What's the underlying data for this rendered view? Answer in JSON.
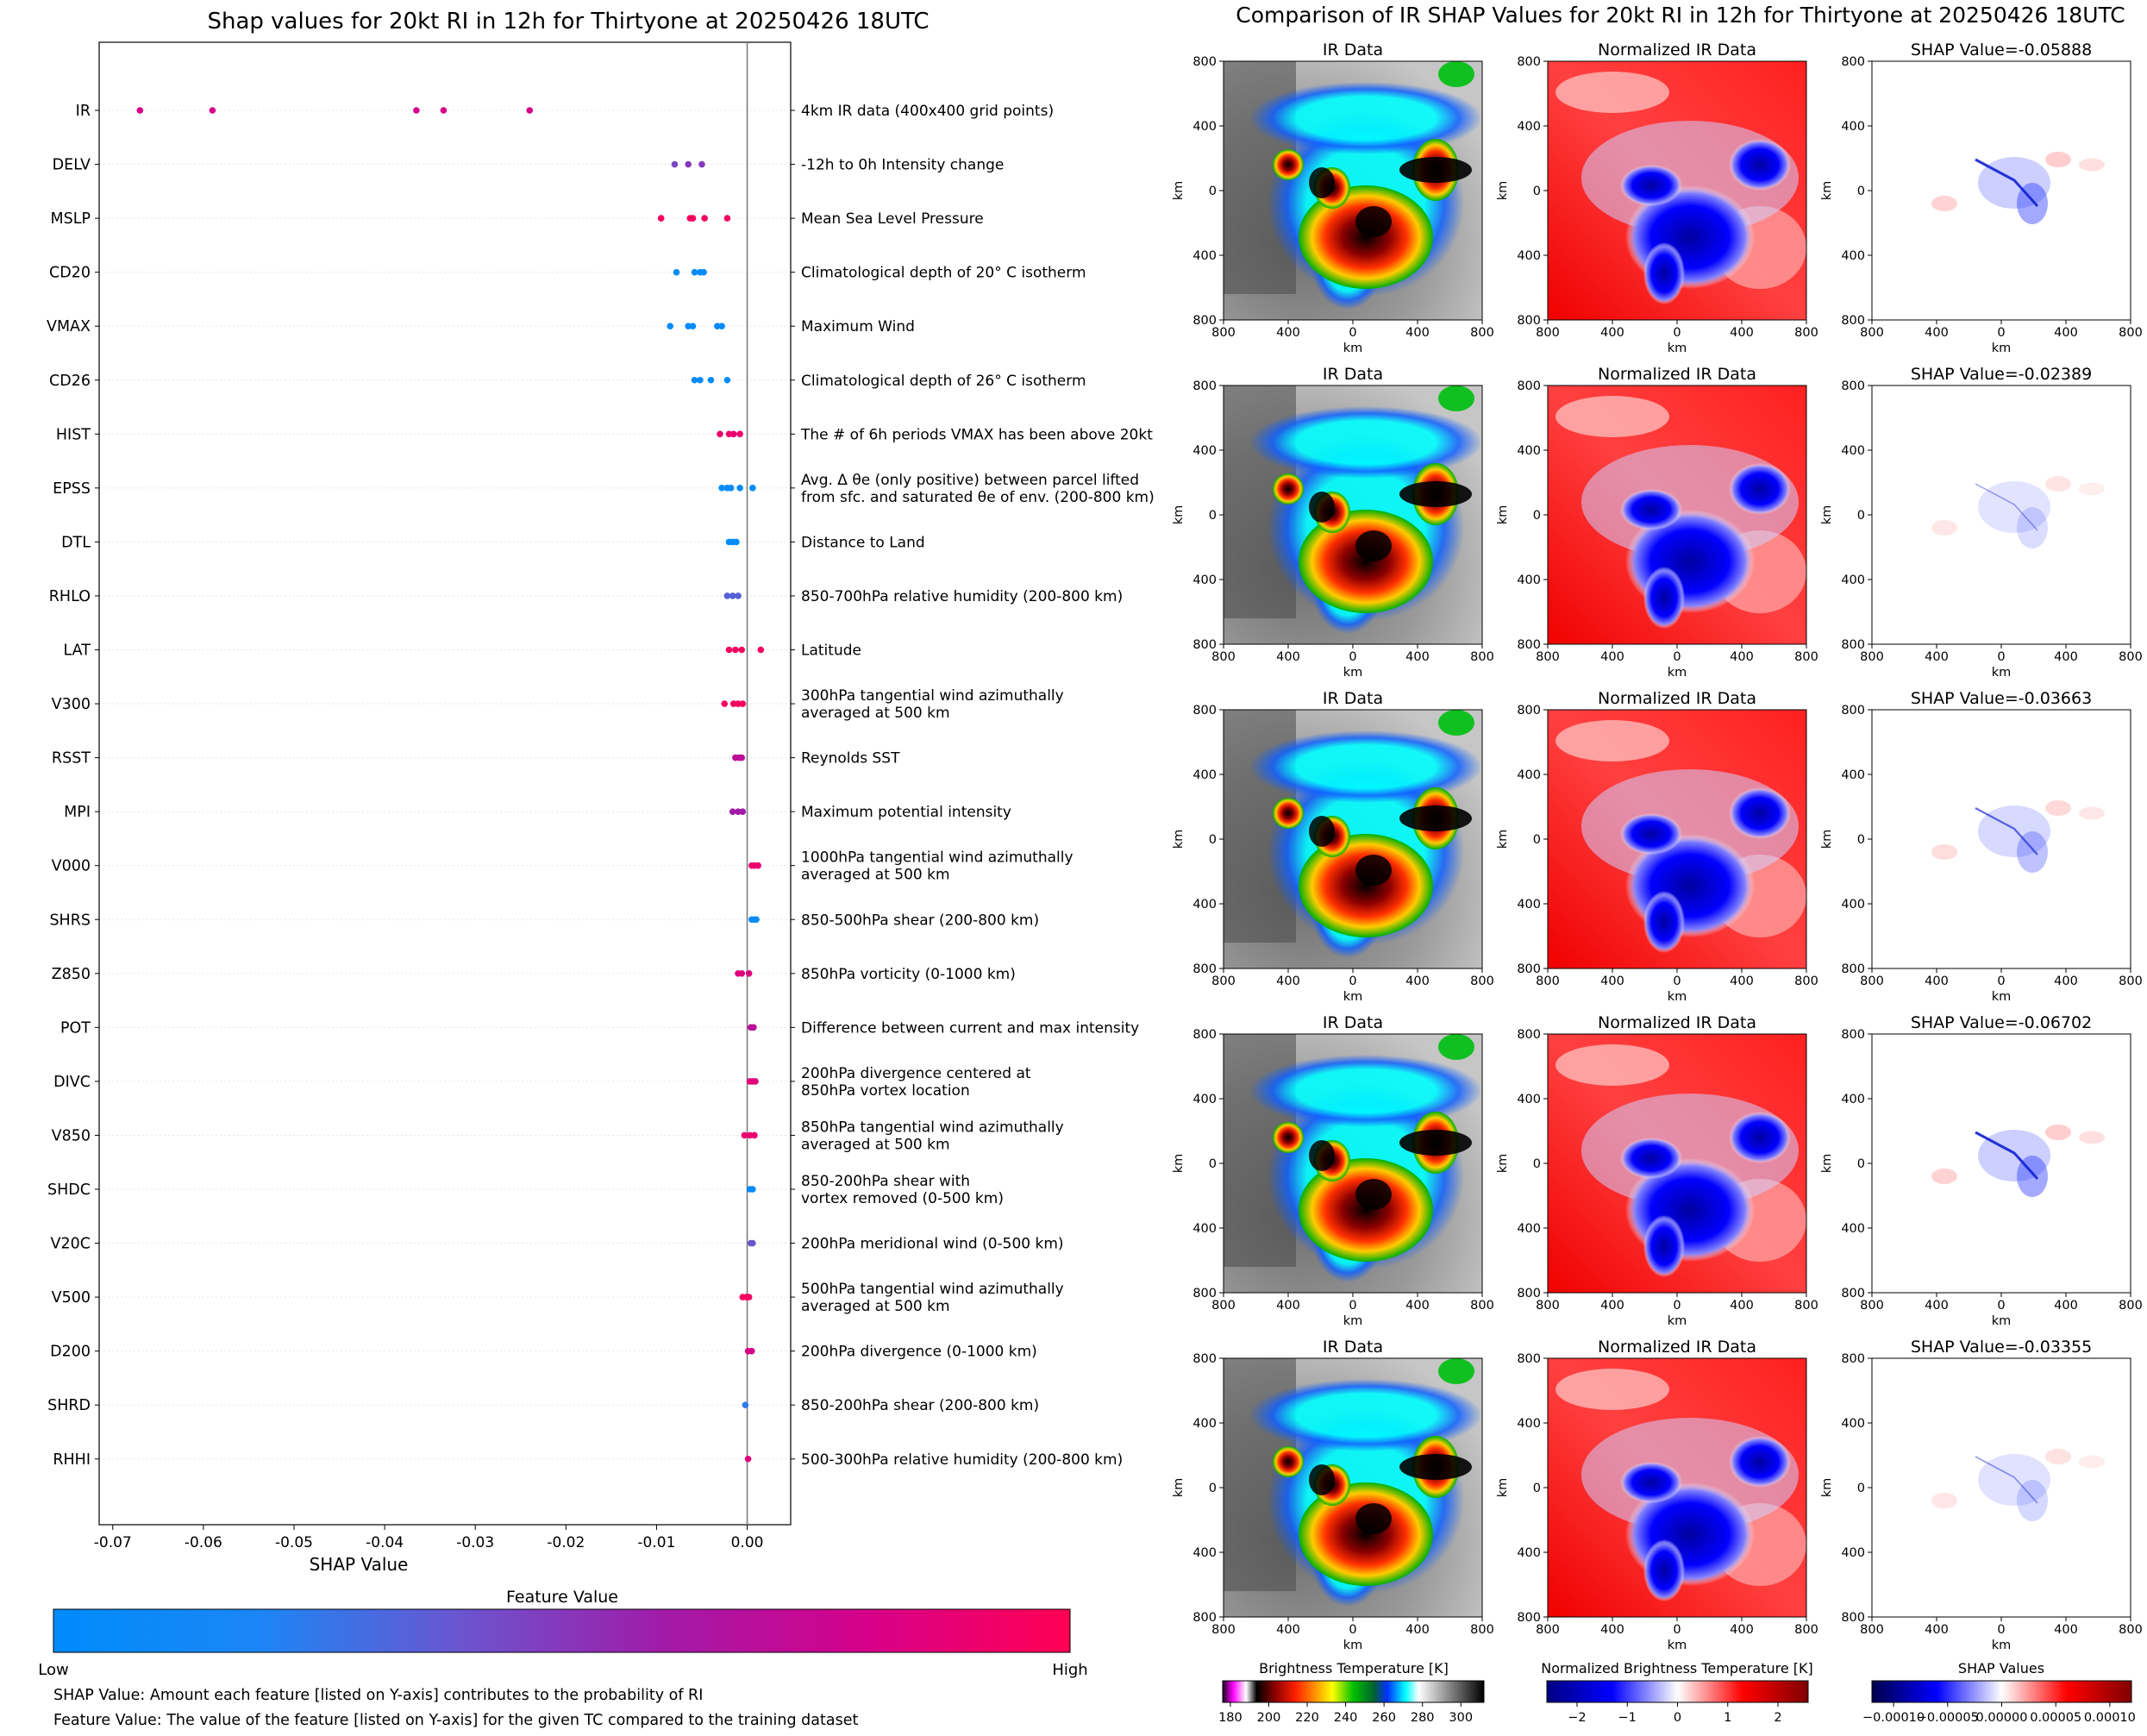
{
  "colors": {
    "low": "#008bfb",
    "mid": "#8a3fbf",
    "high": "#ff0052",
    "axis": "#000000",
    "grid": "#dddddd"
  },
  "chart_data": [
    {
      "type": "scatter",
      "title": "Shap values for 20kt RI in 12h for Thirtyone at 20250426 18UTC",
      "xlabel": "SHAP Value",
      "xlim": [
        -0.0715,
        0.0048
      ],
      "xticks": [
        "-0.07",
        "-0.06",
        "-0.05",
        "-0.04",
        "-0.03",
        "-0.02",
        "-0.01",
        "0.00"
      ],
      "xtick_values": [
        -0.07,
        -0.06,
        -0.05,
        -0.04,
        -0.03,
        -0.02,
        -0.01,
        0.0
      ],
      "features": [
        {
          "name": "IR",
          "desc": [
            "4km IR data (400x400 grid points)"
          ],
          "points": [
            [
              -0.067,
              0.8
            ],
            [
              -0.059,
              0.8
            ],
            [
              -0.0365,
              0.8
            ],
            [
              -0.0335,
              0.8
            ],
            [
              -0.024,
              0.8
            ]
          ]
        },
        {
          "name": "DELV",
          "desc": [
            "-12h to 0h Intensity change"
          ],
          "points": [
            [
              -0.008,
              0.45
            ],
            [
              -0.0065,
              0.5
            ],
            [
              -0.005,
              0.5
            ]
          ]
        },
        {
          "name": "MSLP",
          "desc": [
            "Mean Sea Level Pressure"
          ],
          "points": [
            [
              -0.0095,
              0.95
            ],
            [
              -0.0063,
              0.95
            ],
            [
              -0.006,
              0.95
            ],
            [
              -0.0047,
              0.95
            ],
            [
              -0.0022,
              0.95
            ]
          ]
        },
        {
          "name": "CD20",
          "desc": [
            "Climatological depth of 20° C isotherm"
          ],
          "points": [
            [
              -0.0078,
              0.02
            ],
            [
              -0.0058,
              0.02
            ],
            [
              -0.0052,
              0.02
            ],
            [
              -0.0048,
              0.02
            ]
          ]
        },
        {
          "name": "VMAX",
          "desc": [
            "Maximum Wind"
          ],
          "points": [
            [
              -0.0085,
              0.02
            ],
            [
              -0.0065,
              0.02
            ],
            [
              -0.006,
              0.02
            ],
            [
              -0.0033,
              0.02
            ],
            [
              -0.0028,
              0.02
            ]
          ]
        },
        {
          "name": "CD26",
          "desc": [
            "Climatological depth of 26° C isotherm"
          ],
          "points": [
            [
              -0.0058,
              0.02
            ],
            [
              -0.0052,
              0.02
            ],
            [
              -0.004,
              0.02
            ],
            [
              -0.0022,
              0.02
            ]
          ]
        },
        {
          "name": "HIST",
          "desc": [
            "The # of 6h periods VMAX has been above 20kt"
          ],
          "points": [
            [
              -0.003,
              0.9
            ],
            [
              -0.002,
              0.9
            ],
            [
              -0.0015,
              0.9
            ],
            [
              -0.0008,
              0.9
            ]
          ]
        },
        {
          "name": "EPSS",
          "desc": [
            "Avg. Δ θe (only positive) between parcel lifted",
            "from sfc. and saturated θe of env. (200-800 km)"
          ],
          "points": [
            [
              -0.0028,
              0.02
            ],
            [
              -0.0022,
              0.02
            ],
            [
              -0.0018,
              0.02
            ],
            [
              -0.0008,
              0.02
            ],
            [
              0.0006,
              0.02
            ]
          ]
        },
        {
          "name": "DTL",
          "desc": [
            "Distance to Land"
          ],
          "points": [
            [
              -0.002,
              0.02
            ],
            [
              -0.0016,
              0.02
            ],
            [
              -0.0012,
              0.02
            ]
          ]
        },
        {
          "name": "RHLO",
          "desc": [
            "850-700hPa relative humidity (200-800 km)"
          ],
          "points": [
            [
              -0.0022,
              0.35
            ],
            [
              -0.0016,
              0.35
            ],
            [
              -0.001,
              0.35
            ]
          ]
        },
        {
          "name": "LAT",
          "desc": [
            "Latitude"
          ],
          "points": [
            [
              -0.002,
              0.95
            ],
            [
              -0.0013,
              0.95
            ],
            [
              -0.0006,
              0.95
            ],
            [
              0.0015,
              0.95
            ]
          ]
        },
        {
          "name": "V300",
          "desc": [
            "300hPa tangential wind azimuthally",
            "averaged at 500 km"
          ],
          "points": [
            [
              -0.0025,
              0.95
            ],
            [
              -0.0015,
              0.95
            ],
            [
              -0.001,
              0.95
            ],
            [
              -0.0005,
              0.95
            ]
          ]
        },
        {
          "name": "RSST",
          "desc": [
            "Reynolds SST"
          ],
          "points": [
            [
              -0.0013,
              0.7
            ],
            [
              -0.0009,
              0.7
            ],
            [
              -0.0006,
              0.7
            ]
          ]
        },
        {
          "name": "MPI",
          "desc": [
            "Maximum potential intensity"
          ],
          "points": [
            [
              -0.0016,
              0.6
            ],
            [
              -0.001,
              0.6
            ],
            [
              -0.0005,
              0.6
            ]
          ]
        },
        {
          "name": "V000",
          "desc": [
            "1000hPa tangential wind azimuthally",
            "averaged at 500 km"
          ],
          "points": [
            [
              0.0005,
              0.9
            ],
            [
              0.0008,
              0.9
            ],
            [
              0.0012,
              0.9
            ]
          ]
        },
        {
          "name": "SHRS",
          "desc": [
            "850-500hPa shear (200-800 km)"
          ],
          "points": [
            [
              0.0005,
              0.02
            ],
            [
              0.0008,
              0.02
            ],
            [
              0.001,
              0.02
            ]
          ]
        },
        {
          "name": "Z850",
          "desc": [
            "850hPa vorticity (0-1000 km)"
          ],
          "points": [
            [
              -0.001,
              0.85
            ],
            [
              -0.0006,
              0.85
            ],
            [
              0.0002,
              0.85
            ]
          ]
        },
        {
          "name": "POT",
          "desc": [
            "Difference between current and max intensity"
          ],
          "points": [
            [
              0.0004,
              0.7
            ],
            [
              0.0007,
              0.7
            ]
          ]
        },
        {
          "name": "DIVC",
          "desc": [
            "200hPa divergence centered at",
            "850hPa vortex location"
          ],
          "points": [
            [
              0.0003,
              0.85
            ],
            [
              0.0006,
              0.85
            ],
            [
              0.0009,
              0.85
            ]
          ]
        },
        {
          "name": "V850",
          "desc": [
            "850hPa tangential wind azimuthally",
            "averaged at 500 km"
          ],
          "points": [
            [
              -0.0003,
              0.9
            ],
            [
              0.0003,
              0.9
            ],
            [
              0.0008,
              0.9
            ]
          ]
        },
        {
          "name": "SHDC",
          "desc": [
            "850-200hPa shear with",
            "vortex removed (0-500 km)"
          ],
          "points": [
            [
              0.0003,
              0.02
            ],
            [
              0.0006,
              0.02
            ]
          ]
        },
        {
          "name": "V20C",
          "desc": [
            "200hPa meridional wind (0-500 km)"
          ],
          "points": [
            [
              0.0004,
              0.4
            ],
            [
              0.0006,
              0.4
            ]
          ]
        },
        {
          "name": "V500",
          "desc": [
            "500hPa tangential wind azimuthally",
            "averaged at 500 km"
          ],
          "points": [
            [
              -0.0005,
              0.95
            ],
            [
              -0.0001,
              0.95
            ],
            [
              0.0002,
              0.95
            ]
          ]
        },
        {
          "name": "D200",
          "desc": [
            "200hPa divergence (0-1000 km)"
          ],
          "points": [
            [
              0.0001,
              0.8
            ],
            [
              0.0005,
              0.8
            ]
          ]
        },
        {
          "name": "SHRD",
          "desc": [
            "850-200hPa shear (200-800 km)"
          ],
          "points": [
            [
              -0.0002,
              0.25
            ]
          ]
        },
        {
          "name": "RHHI",
          "desc": [
            "500-300hPa relative humidity (200-800 km)"
          ],
          "points": [
            [
              0.0001,
              0.85
            ]
          ]
        }
      ],
      "colorbar": {
        "title": "Feature Value",
        "low_label": "Low",
        "high_label": "High"
      }
    },
    {
      "type": "image-grid",
      "title": "Comparison of IR SHAP Values for 20kt RI in 12h for Thirtyone at 20250426 18UTC",
      "column_titles": [
        "IR Data",
        "Normalized IR Data"
      ],
      "shap_titles": [
        "SHAP Value=-0.05888",
        "SHAP Value=-0.02389",
        "SHAP Value=-0.03663",
        "SHAP Value=-0.06702",
        "SHAP Value=-0.03355"
      ],
      "axis_label": "km",
      "ticks": [
        "800",
        "400",
        "0",
        "400",
        "800"
      ],
      "colorbars": [
        {
          "title": "Brightness Temperature [K]",
          "ticks": [
            "180",
            "200",
            "220",
            "240",
            "260",
            "280",
            "300"
          ],
          "range": [
            176,
            312
          ]
        },
        {
          "title": "Normalized Brightness Temperature [K]",
          "ticks": [
            "−2",
            "−1",
            "0",
            "1",
            "2"
          ],
          "range": [
            -2.6,
            2.6
          ]
        },
        {
          "title": "SHAP Values",
          "ticks": [
            "−0.00010",
            "−0.00005",
            "0.00000",
            "0.00005",
            "0.00010"
          ],
          "range": [
            -0.00012,
            0.00012
          ]
        }
      ]
    }
  ],
  "footnotes": {
    "shap_value": "SHAP Value: Amount each feature [listed on Y-axis] contributes to the probability of RI",
    "feature_value": "Feature Value: The value of the feature [listed on Y-axis] for the given TC compared to the training dataset"
  }
}
